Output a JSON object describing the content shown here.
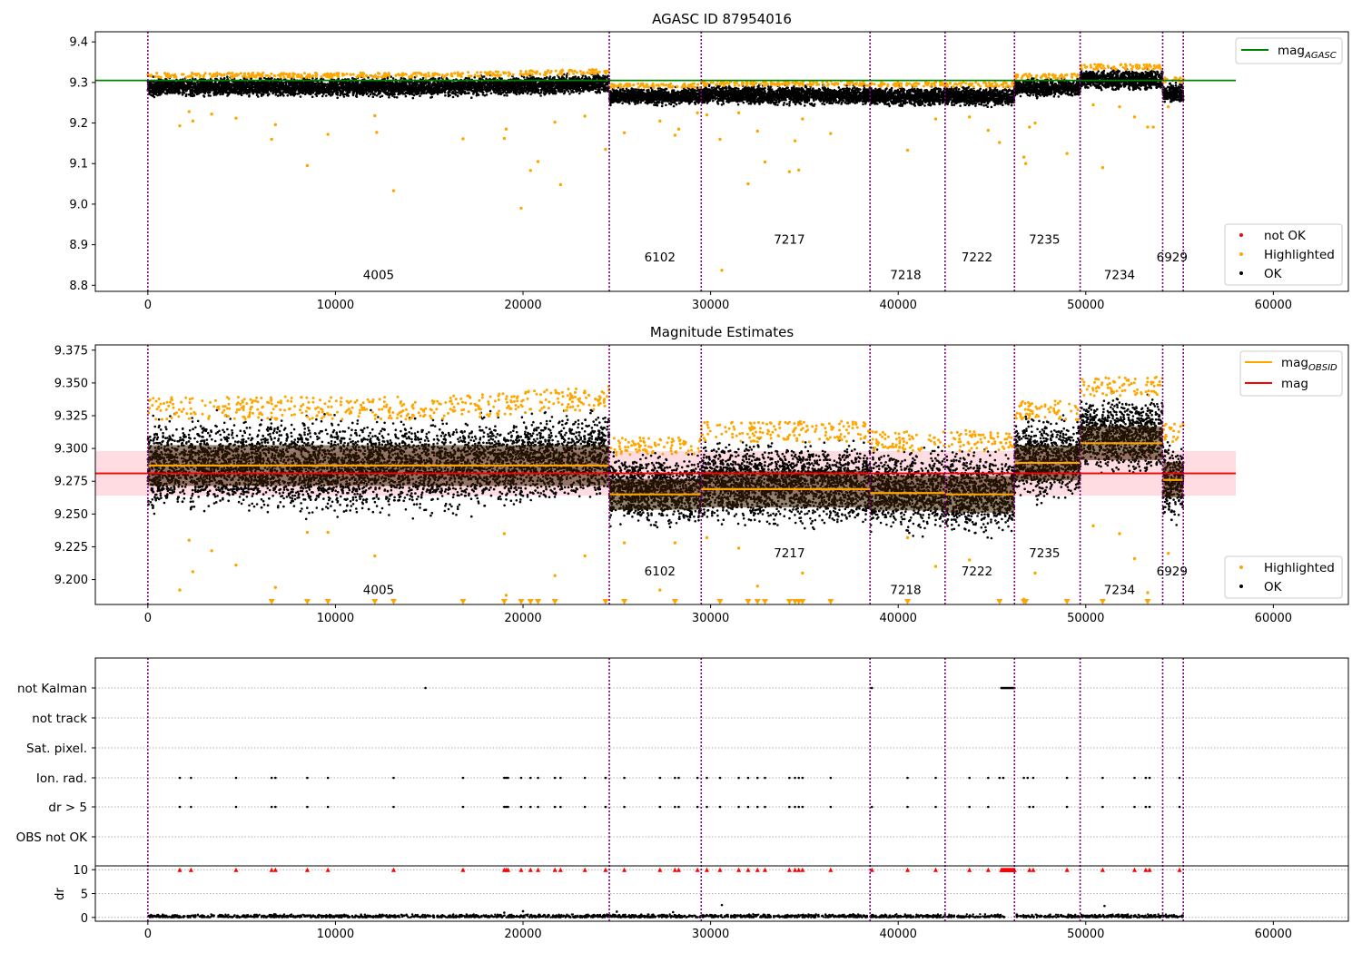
{
  "chart_data": [
    {
      "type": "scatter",
      "title": "AGASC ID 87954016",
      "xlim": [
        -2800,
        64000
      ],
      "ylim": [
        8.785,
        9.425
      ],
      "xticks": [
        0,
        10000,
        20000,
        30000,
        40000,
        50000,
        60000
      ],
      "xtick_labels": [
        "0",
        "10000",
        "20000",
        "30000",
        "40000",
        "50000",
        "60000"
      ],
      "yticks": [
        8.8,
        8.9,
        9.0,
        9.1,
        9.2,
        9.3,
        9.4
      ],
      "ytick_labels": [
        "8.8",
        "8.9",
        "9.0",
        "9.1",
        "9.2",
        "9.3",
        "9.4"
      ],
      "reference_line": {
        "name": "mag_AGASC",
        "label_main": "mag",
        "label_sub": "AGASC",
        "y": 9.305,
        "x_range": [
          -2800,
          58000
        ],
        "color": "#008000"
      },
      "obs_boundaries": [
        0,
        24600,
        29500,
        38500,
        42500,
        46200,
        49700,
        54100,
        55200
      ],
      "obsid_labels": [
        {
          "text": "4005",
          "x": 12300,
          "y": 8.815
        },
        {
          "text": "6102",
          "x": 27300,
          "y": 8.859
        },
        {
          "text": "7217",
          "x": 34200,
          "y": 8.903
        },
        {
          "text": "7218",
          "x": 40400,
          "y": 8.815
        },
        {
          "text": "7222",
          "x": 44200,
          "y": 8.859
        },
        {
          "text": "7235",
          "x": 47800,
          "y": 8.903
        },
        {
          "text": "7234",
          "x": 51800,
          "y": 8.815
        },
        {
          "text": "6929",
          "x": 54600,
          "y": 8.859
        }
      ],
      "ok_segments": [
        {
          "x0": 0,
          "x1": 24600,
          "ylo": 9.265,
          "yhi": 9.312,
          "y_end_lo": 9.272,
          "y_end_hi": 9.322
        },
        {
          "x0": 24600,
          "x1": 29500,
          "ylo": 9.245,
          "yhi": 9.287
        },
        {
          "x0": 29500,
          "x1": 38500,
          "ylo": 9.245,
          "yhi": 9.292
        },
        {
          "x0": 38500,
          "x1": 42500,
          "ylo": 9.242,
          "yhi": 9.289
        },
        {
          "x0": 42500,
          "x1": 46200,
          "ylo": 9.242,
          "yhi": 9.289
        },
        {
          "x0": 46200,
          "x1": 49700,
          "ylo": 9.265,
          "yhi": 9.31
        },
        {
          "x0": 49700,
          "x1": 54100,
          "ylo": 9.282,
          "yhi": 9.332
        },
        {
          "x0": 54100,
          "x1": 55200,
          "ylo": 9.25,
          "yhi": 9.3
        }
      ],
      "highlighted_points": [
        [
          1700,
          9.193
        ],
        [
          2200,
          9.228
        ],
        [
          2400,
          9.205
        ],
        [
          3400,
          9.222
        ],
        [
          4700,
          9.212
        ],
        [
          6600,
          9.16
        ],
        [
          6800,
          9.196
        ],
        [
          8500,
          9.095
        ],
        [
          9600,
          9.172
        ],
        [
          12100,
          9.218
        ],
        [
          12200,
          9.177
        ],
        [
          13100,
          9.033
        ],
        [
          16800,
          9.161
        ],
        [
          19000,
          9.162
        ],
        [
          19100,
          9.185
        ],
        [
          19900,
          8.99
        ],
        [
          20400,
          9.083
        ],
        [
          20800,
          9.105
        ],
        [
          21700,
          9.202
        ],
        [
          22000,
          9.048
        ],
        [
          23300,
          9.217
        ],
        [
          24400,
          9.135
        ],
        [
          25400,
          9.176
        ],
        [
          27300,
          9.205
        ],
        [
          28100,
          9.17
        ],
        [
          28300,
          9.185
        ],
        [
          29300,
          9.225
        ],
        [
          29800,
          9.22
        ],
        [
          30500,
          9.16
        ],
        [
          31500,
          9.225
        ],
        [
          32000,
          9.05
        ],
        [
          32500,
          9.18
        ],
        [
          32900,
          9.104
        ],
        [
          34200,
          9.08
        ],
        [
          34500,
          9.156
        ],
        [
          34700,
          9.084
        ],
        [
          34900,
          9.21
        ],
        [
          36400,
          9.174
        ],
        [
          40500,
          9.133
        ],
        [
          42000,
          9.21
        ],
        [
          43800,
          9.215
        ],
        [
          44800,
          9.182
        ],
        [
          45400,
          9.152
        ],
        [
          46700,
          9.116
        ],
        [
          46800,
          9.1
        ],
        [
          47000,
          9.19
        ],
        [
          47300,
          9.2
        ],
        [
          49000,
          9.125
        ],
        [
          50400,
          9.245
        ],
        [
          50900,
          9.09
        ],
        [
          51800,
          9.24
        ],
        [
          52600,
          9.215
        ],
        [
          53300,
          9.19
        ],
        [
          53600,
          9.19
        ],
        [
          54400,
          9.24
        ],
        [
          30600,
          8.837
        ]
      ],
      "highlighted_top_fraction": 0.08,
      "legend_lines": [
        {
          "label_main": "mag",
          "label_sub": "AGASC",
          "color": "#008000"
        }
      ],
      "legend_points": [
        {
          "label": "not OK",
          "color": "#ff0000"
        },
        {
          "label": "Highlighted",
          "color": "#ffa500"
        },
        {
          "label": "OK",
          "color": "#000000"
        }
      ]
    },
    {
      "type": "scatter",
      "title": "Magnitude Estimates",
      "xlim": [
        -2800,
        64000
      ],
      "ylim": [
        9.181,
        9.379
      ],
      "xticks": [
        0,
        10000,
        20000,
        30000,
        40000,
        50000,
        60000
      ],
      "xtick_labels": [
        "0",
        "10000",
        "20000",
        "30000",
        "40000",
        "50000",
        "60000"
      ],
      "yticks": [
        9.2,
        9.225,
        9.25,
        9.275,
        9.3,
        9.325,
        9.35,
        9.375
      ],
      "ytick_labels": [
        "9.200",
        "9.225",
        "9.250",
        "9.275",
        "9.300",
        "9.325",
        "9.350",
        "9.375"
      ],
      "mean_mag": {
        "label": "mag",
        "y": 9.281,
        "band": [
          9.264,
          9.298
        ],
        "x_range": [
          -2800,
          58000
        ],
        "color": "#ff0000"
      },
      "obs_boundaries": [
        0,
        24600,
        29500,
        38500,
        42500,
        46200,
        49700,
        54100,
        55200
      ],
      "obsid_mags": [
        9.287,
        9.265,
        9.269,
        9.266,
        9.265,
        9.289,
        9.304,
        9.276
      ],
      "obsid_labels": [
        {
          "text": "4005",
          "x": 12300,
          "y": 9.189
        },
        {
          "text": "6102",
          "x": 27300,
          "y": 9.203
        },
        {
          "text": "7217",
          "x": 34200,
          "y": 9.217
        },
        {
          "text": "7218",
          "x": 40400,
          "y": 9.189
        },
        {
          "text": "7222",
          "x": 44200,
          "y": 9.203
        },
        {
          "text": "7235",
          "x": 47800,
          "y": 9.217
        },
        {
          "text": "7234",
          "x": 51800,
          "y": 9.189
        },
        {
          "text": "6929",
          "x": 54600,
          "y": 9.203
        }
      ],
      "ok_segments": [
        {
          "x0": 0,
          "x1": 24600,
          "ylo": 9.252,
          "yhi": 9.322,
          "y_end_lo": 9.262,
          "y_end_hi": 9.33
        },
        {
          "x0": 24600,
          "x1": 29500,
          "ylo": 9.242,
          "yhi": 9.295
        },
        {
          "x0": 29500,
          "x1": 38500,
          "ylo": 9.242,
          "yhi": 9.305
        },
        {
          "x0": 38500,
          "x1": 42500,
          "ylo": 9.238,
          "yhi": 9.298
        },
        {
          "x0": 42500,
          "x1": 46200,
          "ylo": 9.235,
          "yhi": 9.298
        },
        {
          "x0": 46200,
          "x1": 49700,
          "ylo": 9.262,
          "yhi": 9.322
        },
        {
          "x0": 49700,
          "x1": 54100,
          "ylo": 9.282,
          "yhi": 9.34
        },
        {
          "x0": 54100,
          "x1": 55200,
          "ylo": 9.245,
          "yhi": 9.305
        }
      ],
      "highlighted_points": [
        [
          1700,
          9.192
        ],
        [
          2200,
          9.23
        ],
        [
          2400,
          9.206
        ],
        [
          3400,
          9.222
        ],
        [
          4700,
          9.211
        ],
        [
          6800,
          9.194
        ],
        [
          8500,
          9.236
        ],
        [
          9600,
          9.236
        ],
        [
          12100,
          9.218
        ],
        [
          19000,
          9.235
        ],
        [
          19100,
          9.188
        ],
        [
          21700,
          9.203
        ],
        [
          23300,
          9.218
        ],
        [
          25400,
          9.228
        ],
        [
          27300,
          9.192
        ],
        [
          28100,
          9.228
        ],
        [
          29800,
          9.232
        ],
        [
          31500,
          9.224
        ],
        [
          32500,
          9.195
        ],
        [
          34900,
          9.205
        ],
        [
          40500,
          9.232
        ],
        [
          42000,
          9.21
        ],
        [
          43800,
          9.215
        ],
        [
          46700,
          9.185
        ],
        [
          47300,
          9.205
        ],
        [
          50400,
          9.241
        ],
        [
          51800,
          9.235
        ],
        [
          52600,
          9.216
        ],
        [
          53300,
          9.19
        ],
        [
          54400,
          9.22
        ]
      ],
      "clipped_points": [
        6600,
        8500,
        9600,
        12100,
        13100,
        16800,
        19000,
        19900,
        20400,
        20800,
        21700,
        24400,
        25400,
        28100,
        30500,
        32000,
        32500,
        32900,
        34200,
        34500,
        34700,
        34900,
        36400,
        40500,
        45400,
        46700,
        46800,
        49000,
        50900,
        53300
      ],
      "highlighted_top_fraction": 0.08,
      "legend_lines": [
        {
          "label_main": "mag",
          "label_sub": "OBSID",
          "color": "#ffa500"
        },
        {
          "label_main": "mag",
          "label_sub": "",
          "color": "#ff0000"
        }
      ],
      "legend_points": [
        {
          "label": "Highlighted",
          "color": "#ffa500"
        },
        {
          "label": "OK",
          "color": "#000000"
        }
      ]
    },
    {
      "type": "scatter",
      "title": "",
      "xlim": [
        -2800,
        64000
      ],
      "xticks": [
        0,
        10000,
        20000,
        30000,
        40000,
        50000,
        60000
      ],
      "xtick_labels": [
        "0",
        "10000",
        "20000",
        "30000",
        "40000",
        "50000",
        "60000"
      ],
      "flag_rows": [
        "not Kalman",
        "not track",
        "Sat. pixel.",
        "Ion. rad.",
        "dr > 5",
        "OBS not OK"
      ],
      "dr_ylabel": "dr",
      "dr_yticks": [
        0,
        5,
        10
      ],
      "dr_ylim": [
        -0.8,
        10.8
      ],
      "obs_boundaries": [
        0,
        24600,
        29500,
        38500,
        42500,
        46200,
        49700,
        54100,
        55200
      ],
      "not_kalman_points": [
        14800,
        38600,
        46200
      ],
      "not_kalman_cluster": [
        45500,
        46200
      ],
      "ion_rad_points": [
        1700,
        2300,
        4700,
        6600,
        6800,
        8500,
        9600,
        13100,
        16800,
        19000,
        19100,
        19200,
        19900,
        20400,
        20800,
        21700,
        22000,
        23300,
        24400,
        25400,
        27300,
        28100,
        28300,
        29300,
        29800,
        30500,
        31500,
        32000,
        32500,
        32900,
        34200,
        34500,
        34700,
        34900,
        36400,
        40500,
        42000,
        43800,
        44800,
        45400,
        45600,
        46700,
        46900,
        47200,
        49000,
        50900,
        52600,
        53200,
        53400,
        55000
      ],
      "dr_high_points": [
        1700,
        2300,
        4700,
        6600,
        6800,
        8500,
        9600,
        13100,
        16800,
        19000,
        19100,
        19200,
        19900,
        20400,
        20800,
        21700,
        22000,
        23300,
        24400,
        25400,
        27300,
        28100,
        28300,
        29300,
        29800,
        30500,
        31500,
        32000,
        32500,
        32900,
        34200,
        34500,
        34700,
        34900,
        36400,
        38600,
        40500,
        42000,
        43800,
        44800,
        47000,
        47200,
        49000,
        50900,
        52600,
        53200,
        53400,
        55000
      ],
      "dr_high_cluster": [
        45500,
        46200
      ],
      "dr_gap": [
        45700,
        46300
      ],
      "dr_outliers": [
        [
          30600,
          2.6
        ],
        [
          51000,
          2.4
        ],
        [
          20000,
          1.3
        ],
        [
          25000,
          1.2
        ],
        [
          28000,
          1.1
        ],
        [
          19000,
          1.0
        ]
      ]
    }
  ]
}
